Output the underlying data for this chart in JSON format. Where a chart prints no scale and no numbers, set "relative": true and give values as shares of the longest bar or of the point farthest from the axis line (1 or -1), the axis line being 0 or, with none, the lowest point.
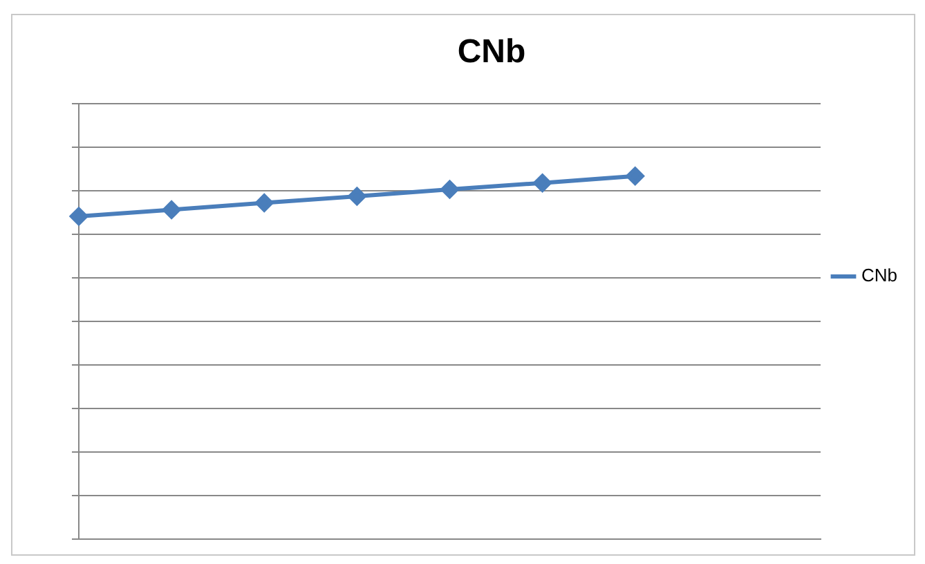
{
  "chart_data": {
    "type": "line",
    "title": "CNb",
    "categories": [
      null,
      null,
      null,
      null,
      null,
      null,
      null,
      null,
      null
    ],
    "relative": true,
    "grid": "y",
    "legend": "right",
    "marker": "diamond",
    "line_style": "solid",
    "series": [
      {
        "name": "CNb",
        "color": "#4a7ebb",
        "values": [
          0.889,
          0.907,
          0.926,
          0.944,
          0.963,
          0.981,
          1,
          null,
          null
        ]
      }
    ]
  }
}
